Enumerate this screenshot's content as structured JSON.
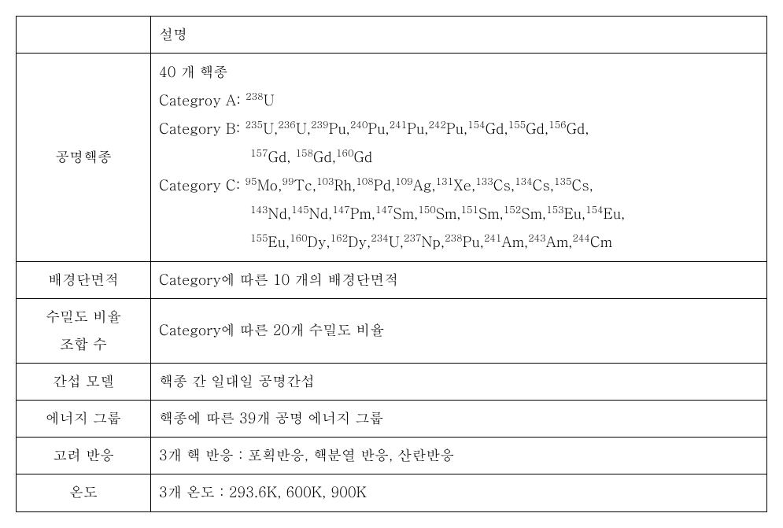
{
  "header": {
    "col1": "",
    "col2": "설명"
  },
  "rows": {
    "r1": {
      "label": "공명핵종",
      "line1": "40 개 핵종",
      "catA_prefix": "Categroy A: ",
      "catA_nuclides": [
        {
          "mass": "238",
          "el": "U"
        }
      ],
      "catB_prefix": "Category B: ",
      "catB_line1": [
        {
          "mass": "235",
          "el": "U"
        },
        {
          "mass": "236",
          "el": "U"
        },
        {
          "mass": "239",
          "el": "Pu"
        },
        {
          "mass": "240",
          "el": "Pu"
        },
        {
          "mass": "241",
          "el": "Pu"
        },
        {
          "mass": "242",
          "el": "Pu"
        },
        {
          "mass": "154",
          "el": "Gd"
        },
        {
          "mass": "155",
          "el": "Gd"
        },
        {
          "mass": "156",
          "el": "Gd"
        }
      ],
      "catB_line2": [
        {
          "mass": "157",
          "el": "Gd"
        },
        {
          "sep": ",  "
        },
        {
          "mass": "158",
          "el": "Gd"
        },
        {
          "mass": "160",
          "el": "Gd"
        }
      ],
      "catC_prefix": "Category C: ",
      "catC_line1": [
        {
          "mass": "95",
          "el": "Mo"
        },
        {
          "mass": "99",
          "el": "Tc"
        },
        {
          "mass": "103",
          "el": "Rh"
        },
        {
          "mass": "108",
          "el": "Pd"
        },
        {
          "mass": "109",
          "el": "Ag"
        },
        {
          "mass": "131",
          "el": "Xe"
        },
        {
          "mass": "133",
          "el": "Cs"
        },
        {
          "mass": "134",
          "el": "Cs"
        },
        {
          "mass": "135",
          "el": "Cs"
        }
      ],
      "catC_line2": [
        {
          "mass": "143",
          "el": "Nd"
        },
        {
          "mass": "145",
          "el": "Nd"
        },
        {
          "mass": "147",
          "el": "Pm"
        },
        {
          "mass": "147",
          "el": "Sm"
        },
        {
          "mass": "150",
          "el": "Sm"
        },
        {
          "mass": "151",
          "el": "Sm"
        },
        {
          "mass": "152",
          "el": "Sm"
        },
        {
          "mass": "153",
          "el": "Eu"
        },
        {
          "mass": "154",
          "el": "Eu"
        }
      ],
      "catC_line3": [
        {
          "mass": "155",
          "el": "Eu"
        },
        {
          "mass": "160",
          "el": "Dy"
        },
        {
          "mass": "162",
          "el": "Dy"
        },
        {
          "mass": "234",
          "el": "U"
        },
        {
          "mass": "237",
          "el": "Np"
        },
        {
          "mass": "238",
          "el": "Pu"
        },
        {
          "mass": "241",
          "el": "Am"
        },
        {
          "mass": "243",
          "el": "Am"
        },
        {
          "mass": "244",
          "el": "Cm"
        }
      ]
    },
    "r2": {
      "label": "배경단면적",
      "desc": "Category에 따른 10 개의 배경단면적"
    },
    "r3": {
      "label": "수밀도 비율\n조합 수",
      "desc": "Category에 따른 20개 수밀도 비율"
    },
    "r4": {
      "label": "간섭 모델",
      "desc": "핵종 간 일대일 공명간섭"
    },
    "r5": {
      "label": "에너지 그룹",
      "desc": "핵종에 따른 39개 공명 에너지 그룹"
    },
    "r6": {
      "label": "고려 반응",
      "desc": "3개 핵 반응 : 포획반응, 핵분열 반응, 산란반응"
    },
    "r7": {
      "label": "온도",
      "desc": "3개 온도 : 293.6K, 600K, 900K"
    }
  }
}
